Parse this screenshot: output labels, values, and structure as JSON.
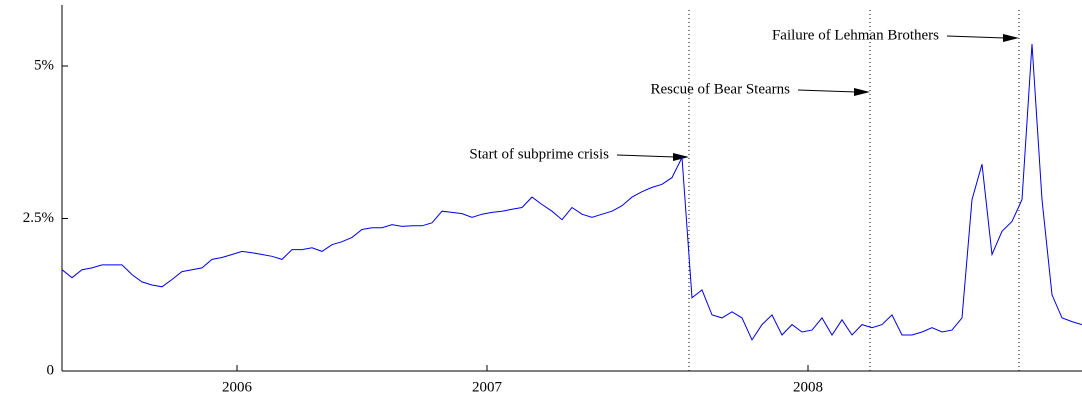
{
  "chart_data": {
    "type": "line",
    "values": [
      1.66,
      1.53,
      1.66,
      1.69,
      1.74,
      1.74,
      1.74,
      1.58,
      1.46,
      1.41,
      1.38,
      1.5,
      1.63,
      1.66,
      1.69,
      1.83,
      1.86,
      1.91,
      1.96,
      1.94,
      1.91,
      1.88,
      1.83,
      1.99,
      1.99,
      2.02,
      1.96,
      2.07,
      2.12,
      2.19,
      2.32,
      2.35,
      2.35,
      2.4,
      2.37,
      2.38,
      2.38,
      2.43,
      2.62,
      2.6,
      2.58,
      2.52,
      2.57,
      2.6,
      2.62,
      2.65,
      2.68,
      2.85,
      2.73,
      2.62,
      2.48,
      2.68,
      2.57,
      2.52,
      2.57,
      2.62,
      2.71,
      2.85,
      2.94,
      3.01,
      3.06,
      3.17,
      3.5,
      1.2,
      1.33,
      0.92,
      0.87,
      0.97,
      0.87,
      0.51,
      0.76,
      0.92,
      0.59,
      0.76,
      0.64,
      0.67,
      0.87,
      0.59,
      0.84,
      0.59,
      0.76,
      0.71,
      0.76,
      0.92,
      0.59,
      0.59,
      0.64,
      0.71,
      0.64,
      0.67,
      0.87,
      2.81,
      3.39,
      1.91,
      2.29,
      2.45,
      2.81,
      5.36,
      2.81,
      1.25,
      0.87,
      0.81,
      0.76
    ],
    "color": "#0000ee",
    "xlim": [
      0,
      102
    ],
    "xticks": [
      {
        "value": 17.5,
        "label": "2006"
      },
      {
        "value": 42.5,
        "label": "2007"
      },
      {
        "value": 74.6,
        "label": "2008"
      }
    ],
    "ylim": [
      0,
      6
    ],
    "yticks": [
      0,
      {
        "value": 2.5,
        "label": "2.5%"
      },
      {
        "value": 5,
        "label": "5%"
      }
    ],
    "annotations": [
      {
        "text": "Start of subprime crisis",
        "x": 62.7
      },
      {
        "text": "Rescue of Bear Stearns",
        "x": 80.8
      },
      {
        "text": "Failure of Lehman Brothers",
        "x": 95.7
      }
    ]
  }
}
